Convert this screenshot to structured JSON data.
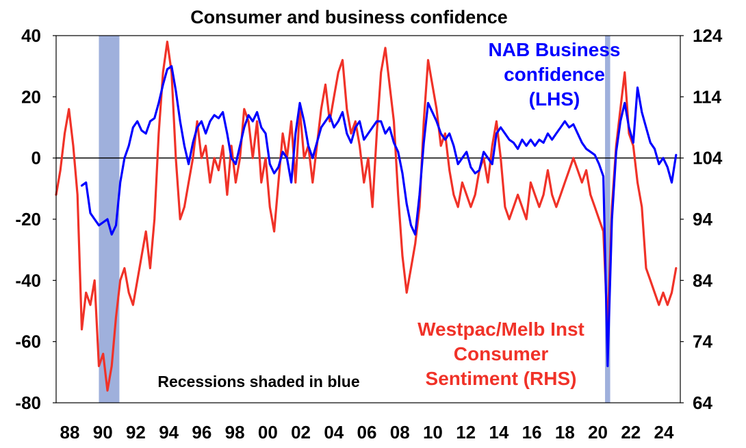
{
  "chart_data": {
    "type": "line",
    "title": "Consumer and business confidence",
    "x_tick_labels": [
      "88",
      "90",
      "92",
      "94",
      "96",
      "98",
      "00",
      "02",
      "04",
      "06",
      "08",
      "10",
      "12",
      "14",
      "16",
      "18",
      "20",
      "22",
      "24"
    ],
    "x_range": [
      1988.0,
      2024.5
    ],
    "left_axis": {
      "ylim": [
        -80,
        40
      ],
      "ticks": [
        40,
        20,
        0,
        -20,
        -40,
        -60,
        -80
      ]
    },
    "right_axis": {
      "ylim": [
        64,
        124
      ],
      "ticks": [
        124,
        114,
        104,
        94,
        84,
        74,
        64
      ]
    },
    "recessions": [
      {
        "start": 1990.5,
        "end": 1991.7
      },
      {
        "start": 2020.1,
        "end": 2020.4
      }
    ],
    "annotations": {
      "nab": [
        "NAB Business",
        "confidence",
        "(LHS)"
      ],
      "westpac": [
        "Westpac/Melb Inst",
        "Consumer",
        "Sentiment (RHS)"
      ],
      "recessions": "Recessions shaded in blue"
    },
    "colors": {
      "nab": "#0000ff",
      "westpac": "#f03228",
      "recession": "#9fb0dc",
      "zero_line": "#000000"
    },
    "series": [
      {
        "key": "nab",
        "axis": "left",
        "points": [
          [
            1989.5,
            -9
          ],
          [
            1989.75,
            -8
          ],
          [
            1990.0,
            -18
          ],
          [
            1990.25,
            -20
          ],
          [
            1990.5,
            -22
          ],
          [
            1990.75,
            -21
          ],
          [
            1991.0,
            -20
          ],
          [
            1991.25,
            -25
          ],
          [
            1991.5,
            -22
          ],
          [
            1991.75,
            -8
          ],
          [
            1992.0,
            0
          ],
          [
            1992.25,
            4
          ],
          [
            1992.5,
            10
          ],
          [
            1992.75,
            12
          ],
          [
            1993.0,
            9
          ],
          [
            1993.25,
            8
          ],
          [
            1993.5,
            12
          ],
          [
            1993.75,
            13
          ],
          [
            1994.0,
            18
          ],
          [
            1994.25,
            24
          ],
          [
            1994.5,
            29
          ],
          [
            1994.75,
            30
          ],
          [
            1995.0,
            22
          ],
          [
            1995.25,
            12
          ],
          [
            1995.5,
            4
          ],
          [
            1995.75,
            -2
          ],
          [
            1996.0,
            5
          ],
          [
            1996.25,
            10
          ],
          [
            1996.5,
            12
          ],
          [
            1996.75,
            8
          ],
          [
            1997.0,
            12
          ],
          [
            1997.25,
            14
          ],
          [
            1997.5,
            13
          ],
          [
            1997.75,
            15
          ],
          [
            1998.0,
            8
          ],
          [
            1998.25,
            0
          ],
          [
            1998.5,
            -2
          ],
          [
            1998.75,
            4
          ],
          [
            1999.0,
            10
          ],
          [
            1999.25,
            14
          ],
          [
            1999.5,
            12
          ],
          [
            1999.75,
            15
          ],
          [
            2000.0,
            10
          ],
          [
            2000.25,
            8
          ],
          [
            2000.5,
            -2
          ],
          [
            2000.75,
            -5
          ],
          [
            2001.0,
            -3
          ],
          [
            2001.25,
            2
          ],
          [
            2001.5,
            0
          ],
          [
            2001.75,
            -8
          ],
          [
            2002.0,
            8
          ],
          [
            2002.25,
            18
          ],
          [
            2002.5,
            12
          ],
          [
            2002.75,
            4
          ],
          [
            2003.0,
            0
          ],
          [
            2003.25,
            5
          ],
          [
            2003.5,
            10
          ],
          [
            2003.75,
            12
          ],
          [
            2004.0,
            14
          ],
          [
            2004.25,
            10
          ],
          [
            2004.5,
            12
          ],
          [
            2004.75,
            15
          ],
          [
            2005.0,
            8
          ],
          [
            2005.25,
            5
          ],
          [
            2005.5,
            10
          ],
          [
            2005.75,
            12
          ],
          [
            2006.0,
            6
          ],
          [
            2006.25,
            8
          ],
          [
            2006.5,
            10
          ],
          [
            2006.75,
            12
          ],
          [
            2007.0,
            12
          ],
          [
            2007.25,
            8
          ],
          [
            2007.5,
            10
          ],
          [
            2007.75,
            5
          ],
          [
            2008.0,
            2
          ],
          [
            2008.25,
            -5
          ],
          [
            2008.5,
            -15
          ],
          [
            2008.75,
            -22
          ],
          [
            2009.0,
            -25
          ],
          [
            2009.25,
            -12
          ],
          [
            2009.5,
            5
          ],
          [
            2009.75,
            18
          ],
          [
            2010.0,
            15
          ],
          [
            2010.25,
            12
          ],
          [
            2010.5,
            8
          ],
          [
            2010.75,
            6
          ],
          [
            2011.0,
            8
          ],
          [
            2011.25,
            4
          ],
          [
            2011.5,
            -2
          ],
          [
            2011.75,
            0
          ],
          [
            2012.0,
            2
          ],
          [
            2012.25,
            -3
          ],
          [
            2012.5,
            -5
          ],
          [
            2012.75,
            -4
          ],
          [
            2013.0,
            2
          ],
          [
            2013.25,
            0
          ],
          [
            2013.5,
            -2
          ],
          [
            2013.75,
            8
          ],
          [
            2014.0,
            10
          ],
          [
            2014.25,
            8
          ],
          [
            2014.5,
            6
          ],
          [
            2014.75,
            5
          ],
          [
            2015.0,
            3
          ],
          [
            2015.25,
            6
          ],
          [
            2015.5,
            4
          ],
          [
            2015.75,
            6
          ],
          [
            2016.0,
            4
          ],
          [
            2016.25,
            6
          ],
          [
            2016.5,
            5
          ],
          [
            2016.75,
            8
          ],
          [
            2017.0,
            6
          ],
          [
            2017.25,
            8
          ],
          [
            2017.5,
            10
          ],
          [
            2017.75,
            12
          ],
          [
            2018.0,
            10
          ],
          [
            2018.25,
            11
          ],
          [
            2018.5,
            8
          ],
          [
            2018.75,
            5
          ],
          [
            2019.0,
            3
          ],
          [
            2019.25,
            2
          ],
          [
            2019.5,
            1
          ],
          [
            2019.75,
            -2
          ],
          [
            2020.0,
            -6
          ],
          [
            2020.25,
            -68
          ],
          [
            2020.5,
            -20
          ],
          [
            2020.75,
            2
          ],
          [
            2021.0,
            12
          ],
          [
            2021.25,
            18
          ],
          [
            2021.5,
            10
          ],
          [
            2021.75,
            5
          ],
          [
            2022.0,
            23
          ],
          [
            2022.25,
            15
          ],
          [
            2022.5,
            10
          ],
          [
            2022.75,
            5
          ],
          [
            2023.0,
            3
          ],
          [
            2023.25,
            -2
          ],
          [
            2023.5,
            0
          ],
          [
            2023.75,
            -3
          ],
          [
            2024.0,
            -8
          ],
          [
            2024.25,
            1
          ]
        ]
      },
      {
        "key": "westpac",
        "axis": "right",
        "points": [
          [
            1988.0,
            98
          ],
          [
            1988.25,
            102
          ],
          [
            1988.5,
            108
          ],
          [
            1988.75,
            112
          ],
          [
            1989.0,
            106
          ],
          [
            1989.25,
            98
          ],
          [
            1989.5,
            76
          ],
          [
            1989.75,
            82
          ],
          [
            1990.0,
            80
          ],
          [
            1990.25,
            84
          ],
          [
            1990.5,
            70
          ],
          [
            1990.75,
            72
          ],
          [
            1991.0,
            66
          ],
          [
            1991.25,
            70
          ],
          [
            1991.5,
            78
          ],
          [
            1991.75,
            84
          ],
          [
            1992.0,
            86
          ],
          [
            1992.25,
            82
          ],
          [
            1992.5,
            80
          ],
          [
            1992.75,
            84
          ],
          [
            1993.0,
            88
          ],
          [
            1993.25,
            92
          ],
          [
            1993.5,
            86
          ],
          [
            1993.75,
            94
          ],
          [
            1994.0,
            108
          ],
          [
            1994.25,
            118
          ],
          [
            1994.5,
            123
          ],
          [
            1994.75,
            118
          ],
          [
            1995.0,
            104
          ],
          [
            1995.25,
            94
          ],
          [
            1995.5,
            96
          ],
          [
            1995.75,
            100
          ],
          [
            1996.0,
            104
          ],
          [
            1996.25,
            110
          ],
          [
            1996.5,
            104
          ],
          [
            1996.75,
            106
          ],
          [
            1997.0,
            100
          ],
          [
            1997.25,
            104
          ],
          [
            1997.5,
            102
          ],
          [
            1997.75,
            106
          ],
          [
            1998.0,
            98
          ],
          [
            1998.25,
            106
          ],
          [
            1998.5,
            100
          ],
          [
            1998.75,
            104
          ],
          [
            1999.0,
            112
          ],
          [
            1999.25,
            110
          ],
          [
            1999.5,
            104
          ],
          [
            1999.75,
            110
          ],
          [
            2000.0,
            100
          ],
          [
            2000.25,
            104
          ],
          [
            2000.5,
            96
          ],
          [
            2000.75,
            92
          ],
          [
            2001.0,
            100
          ],
          [
            2001.25,
            108
          ],
          [
            2001.5,
            104
          ],
          [
            2001.75,
            110
          ],
          [
            2002.0,
            100
          ],
          [
            2002.25,
            112
          ],
          [
            2002.5,
            104
          ],
          [
            2002.75,
            106
          ],
          [
            2003.0,
            100
          ],
          [
            2003.25,
            106
          ],
          [
            2003.5,
            112
          ],
          [
            2003.75,
            116
          ],
          [
            2004.0,
            110
          ],
          [
            2004.25,
            114
          ],
          [
            2004.5,
            118
          ],
          [
            2004.75,
            120
          ],
          [
            2005.0,
            112
          ],
          [
            2005.25,
            108
          ],
          [
            2005.5,
            110
          ],
          [
            2005.75,
            106
          ],
          [
            2006.0,
            100
          ],
          [
            2006.25,
            104
          ],
          [
            2006.5,
            96
          ],
          [
            2006.75,
            108
          ],
          [
            2007.0,
            118
          ],
          [
            2007.25,
            122
          ],
          [
            2007.5,
            116
          ],
          [
            2007.75,
            110
          ],
          [
            2008.0,
            98
          ],
          [
            2008.25,
            88
          ],
          [
            2008.5,
            82
          ],
          [
            2008.75,
            86
          ],
          [
            2009.0,
            90
          ],
          [
            2009.25,
            96
          ],
          [
            2009.5,
            110
          ],
          [
            2009.75,
            120
          ],
          [
            2010.0,
            116
          ],
          [
            2010.25,
            112
          ],
          [
            2010.5,
            106
          ],
          [
            2010.75,
            108
          ],
          [
            2011.0,
            102
          ],
          [
            2011.25,
            98
          ],
          [
            2011.5,
            96
          ],
          [
            2011.75,
            100
          ],
          [
            2012.0,
            98
          ],
          [
            2012.25,
            96
          ],
          [
            2012.5,
            98
          ],
          [
            2012.75,
            102
          ],
          [
            2013.0,
            104
          ],
          [
            2013.25,
            100
          ],
          [
            2013.5,
            106
          ],
          [
            2013.75,
            110
          ],
          [
            2014.0,
            104
          ],
          [
            2014.25,
            96
          ],
          [
            2014.5,
            94
          ],
          [
            2014.75,
            96
          ],
          [
            2015.0,
            98
          ],
          [
            2015.25,
            96
          ],
          [
            2015.5,
            94
          ],
          [
            2015.75,
            100
          ],
          [
            2016.0,
            98
          ],
          [
            2016.25,
            96
          ],
          [
            2016.5,
            98
          ],
          [
            2016.75,
            102
          ],
          [
            2017.0,
            98
          ],
          [
            2017.25,
            96
          ],
          [
            2017.5,
            98
          ],
          [
            2017.75,
            100
          ],
          [
            2018.0,
            102
          ],
          [
            2018.25,
            104
          ],
          [
            2018.5,
            102
          ],
          [
            2018.75,
            100
          ],
          [
            2019.0,
            102
          ],
          [
            2019.25,
            98
          ],
          [
            2019.5,
            96
          ],
          [
            2019.75,
            94
          ],
          [
            2020.0,
            92
          ],
          [
            2020.25,
            76
          ],
          [
            2020.5,
            96
          ],
          [
            2020.75,
            106
          ],
          [
            2021.0,
            112
          ],
          [
            2021.25,
            118
          ],
          [
            2021.5,
            108
          ],
          [
            2021.75,
            106
          ],
          [
            2022.0,
            100
          ],
          [
            2022.25,
            96
          ],
          [
            2022.5,
            86
          ],
          [
            2022.75,
            84
          ],
          [
            2023.0,
            82
          ],
          [
            2023.25,
            80
          ],
          [
            2023.5,
            82
          ],
          [
            2023.75,
            80
          ],
          [
            2024.0,
            82
          ],
          [
            2024.25,
            86
          ]
        ]
      }
    ]
  }
}
